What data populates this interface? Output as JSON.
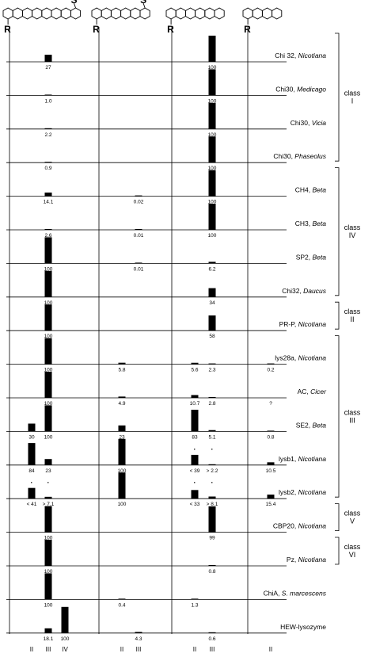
{
  "chart_data": {
    "type": "bar",
    "substrates": [
      {
        "rings": 8,
        "thio": true,
        "r_label": "R"
      },
      {
        "rings": 6,
        "thio": true,
        "r_label": "R"
      },
      {
        "rings": 6,
        "thio": false,
        "r_label": "R"
      },
      {
        "rings": 4,
        "thio": false,
        "r_label": "R"
      }
    ],
    "columns": [
      "II",
      "III",
      "IV",
      "II",
      "III",
      "II",
      "III",
      "II"
    ],
    "rows": [
      {
        "enzyme": "Chi 32, ",
        "organism": "Nicotiana",
        "values": [
          null,
          27,
          null,
          null,
          null,
          null,
          100,
          null
        ],
        "labels": [
          "",
          "27",
          "",
          "",
          "",
          "",
          "100",
          ""
        ]
      },
      {
        "enzyme": "Chi30, ",
        "organism": "Medicago",
        "values": [
          null,
          1.0,
          null,
          null,
          null,
          null,
          100,
          null
        ],
        "labels": [
          "",
          "1.0",
          "",
          "",
          "",
          "",
          "100",
          ""
        ]
      },
      {
        "enzyme": "Chi30, ",
        "organism": "Vicia",
        "values": [
          null,
          2.2,
          null,
          null,
          null,
          null,
          100,
          null
        ],
        "labels": [
          "",
          "2.2",
          "",
          "",
          "",
          "",
          "100",
          ""
        ]
      },
      {
        "enzyme": "Chi30, ",
        "organism": "Phaseolus",
        "values": [
          null,
          0.9,
          null,
          null,
          null,
          null,
          100,
          null
        ],
        "labels": [
          "",
          "0.9",
          "",
          "",
          "",
          "",
          "100",
          ""
        ]
      },
      {
        "enzyme": "CH4, ",
        "organism": "Beta",
        "values": [
          null,
          14.1,
          null,
          null,
          0.02,
          null,
          100,
          null
        ],
        "labels": [
          "",
          "14.1",
          "",
          "",
          "0.02",
          "",
          "100",
          ""
        ]
      },
      {
        "enzyme": "CH3, ",
        "organism": "Beta",
        "values": [
          null,
          2.6,
          null,
          null,
          0.01,
          null,
          100,
          null
        ],
        "labels": [
          "",
          "2.6",
          "",
          "",
          "0.01",
          "",
          "100",
          ""
        ]
      },
      {
        "enzyme": "SP2, ",
        "organism": "Beta",
        "values": [
          null,
          100,
          null,
          null,
          0.01,
          null,
          6.2,
          null
        ],
        "labels": [
          "",
          "100",
          "",
          "",
          "0.01",
          "",
          "6.2",
          ""
        ]
      },
      {
        "enzyme": "Chi32, ",
        "organism": "Daucus",
        "values": [
          null,
          100,
          null,
          null,
          null,
          null,
          34,
          null
        ],
        "labels": [
          "",
          "100",
          "",
          "",
          "",
          "",
          "34",
          ""
        ]
      },
      {
        "enzyme": "PR-P, ",
        "organism": "Nicotiana",
        "values": [
          null,
          100,
          null,
          null,
          null,
          null,
          58,
          null
        ],
        "labels": [
          "",
          "100",
          "",
          "",
          "",
          "",
          "58",
          ""
        ]
      },
      {
        "enzyme": "lys28a, ",
        "organism": "Nicotiana",
        "values": [
          null,
          100,
          null,
          5.8,
          null,
          5.6,
          2.3,
          0.2
        ],
        "labels": [
          "",
          "100",
          "",
          "5.8",
          "",
          "5.6",
          "2.3",
          "0.2"
        ]
      },
      {
        "enzyme": "AC, ",
        "organism": "Cicer",
        "values": [
          null,
          100,
          null,
          4.9,
          null,
          10.7,
          2.8,
          null
        ],
        "labels": [
          "",
          "100",
          "",
          "4.9",
          "",
          "10.7",
          "2.8",
          "?"
        ]
      },
      {
        "enzyme": "SE2, ",
        "organism": "Beta",
        "values": [
          30,
          100,
          null,
          23,
          null,
          83,
          5.1,
          0.8
        ],
        "labels": [
          "30",
          "100",
          "",
          "23",
          "",
          "83",
          "5.1",
          "0.8"
        ]
      },
      {
        "enzyme": "lysb1, ",
        "organism": "Nicotiana",
        "values": [
          84,
          23,
          null,
          100,
          null,
          39,
          2.2,
          10.5
        ],
        "labels": [
          "84",
          "23",
          "",
          "100",
          "",
          "< 39",
          "> 2.2",
          "10.5"
        ],
        "stars": [
          false,
          false,
          false,
          false,
          false,
          true,
          true,
          false
        ]
      },
      {
        "enzyme": "lysb2, ",
        "organism": "Nicotiana",
        "values": [
          41,
          7.1,
          null,
          100,
          null,
          33,
          8.1,
          15.4
        ],
        "labels": [
          "< 41",
          "> 7.1",
          "",
          "100",
          "",
          "< 33",
          "> 8.1",
          "15.4"
        ],
        "stars": [
          true,
          true,
          false,
          false,
          false,
          true,
          true,
          false
        ]
      },
      {
        "enzyme": "CBP20, ",
        "organism": "Nicotiana",
        "values": [
          null,
          100,
          null,
          null,
          null,
          null,
          99,
          null
        ],
        "labels": [
          "",
          "100",
          "",
          "",
          "",
          "",
          "99",
          ""
        ]
      },
      {
        "enzyme": "Pz, ",
        "organism": "Nicotiana",
        "values": [
          null,
          100,
          null,
          null,
          null,
          null,
          0.8,
          null
        ],
        "labels": [
          "",
          "100",
          "",
          "",
          "",
          "",
          "0.8",
          ""
        ]
      },
      {
        "enzyme": "ChiA, ",
        "organism": "S. marcescens",
        "values": [
          null,
          100,
          null,
          0.4,
          null,
          1.3,
          null,
          null
        ],
        "labels": [
          "",
          "100",
          "",
          "0.4",
          "",
          "1.3",
          "",
          ""
        ]
      },
      {
        "enzyme": "HEW-lysozyme",
        "organism": "",
        "values": [
          null,
          18.1,
          100,
          null,
          4.3,
          null,
          0.6,
          null
        ],
        "labels": [
          "",
          "18.1",
          "100",
          "",
          "4.3",
          "",
          "0.6",
          ""
        ]
      }
    ],
    "classes": [
      {
        "label": "class\nI",
        "first_row": 0,
        "last_row": 3
      },
      {
        "label": "class\nIV",
        "first_row": 4,
        "last_row": 7
      },
      {
        "label": "class\nII",
        "first_row": 8,
        "last_row": 8
      },
      {
        "label": "class\nIII",
        "first_row": 9,
        "last_row": 13
      },
      {
        "label": "class\nV",
        "first_row": 14,
        "last_row": 14
      },
      {
        "label": "class\nVI",
        "first_row": 15,
        "last_row": 15
      }
    ],
    "ylim": [
      0,
      100
    ],
    "legend": "none"
  }
}
